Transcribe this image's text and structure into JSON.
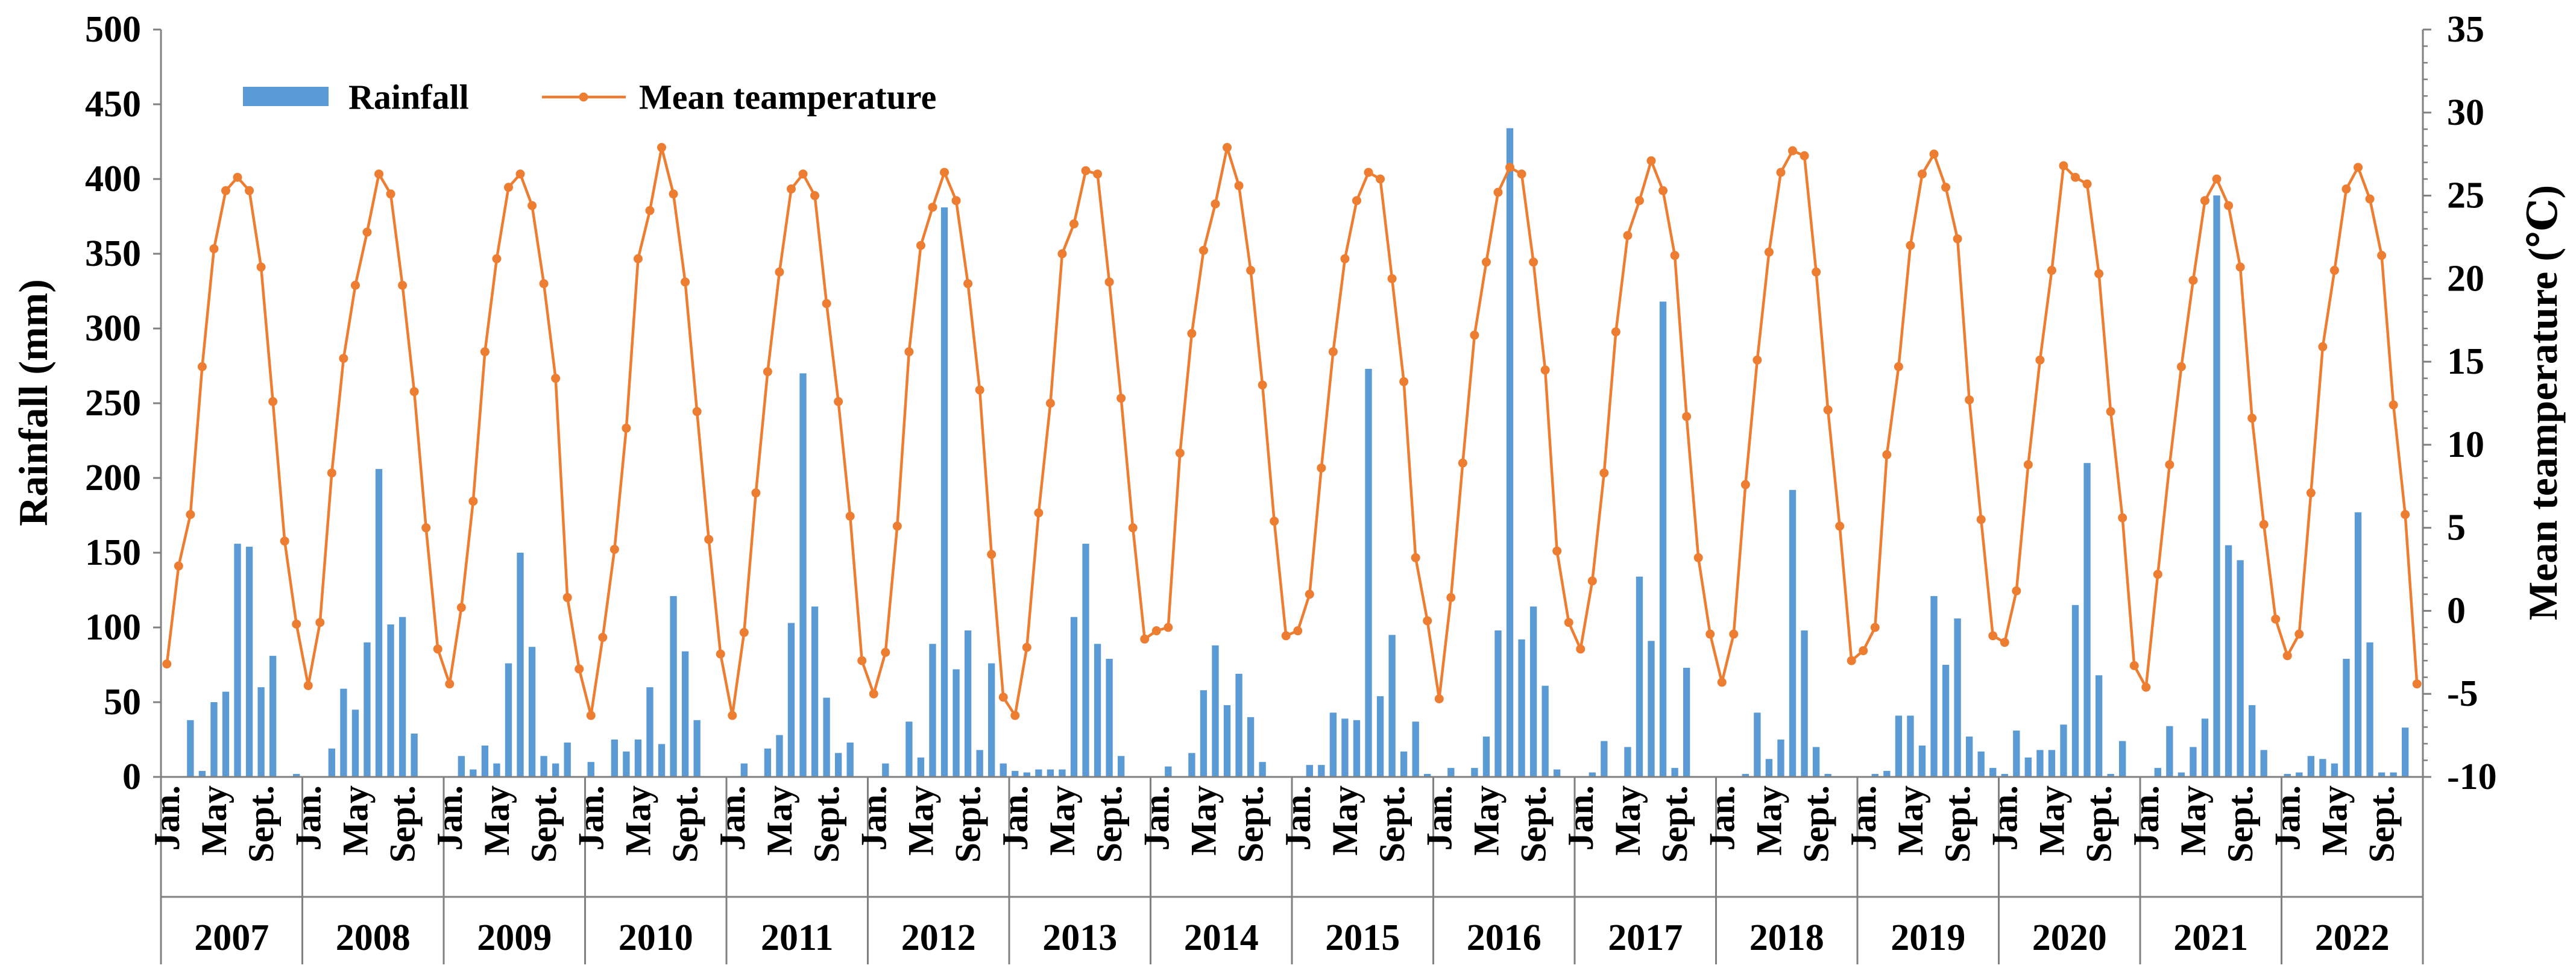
{
  "colors": {
    "rainfall": "#5B9BD5",
    "temperature": "#ED7D31",
    "axis": "#808080"
  },
  "chart_data": {
    "type": "bar",
    "categories": {
      "years": [
        "2007",
        "2008",
        "2009",
        "2010",
        "2011",
        "2012",
        "2013",
        "2014",
        "2015",
        "2016",
        "2017",
        "2018",
        "2019",
        "2020",
        "2021",
        "2022"
      ],
      "months_per_year": 12,
      "month_tick_labels": [
        "Jan.",
        "May",
        "Sept."
      ],
      "month_tick_numbers": [
        1,
        5,
        9
      ]
    },
    "series": [
      {
        "name": "Rainfall",
        "type": "bar",
        "values": [
          [
            0,
            0,
            38,
            4,
            50,
            57,
            156,
            154,
            60,
            81,
            0,
            2
          ],
          [
            0,
            0,
            19,
            59,
            45,
            90,
            206,
            102,
            107,
            29,
            0,
            0
          ],
          [
            0,
            14,
            5,
            21,
            9,
            76,
            150,
            87,
            14,
            9,
            23,
            0
          ],
          [
            10,
            0,
            25,
            17,
            25,
            60,
            22,
            121,
            84,
            38,
            0,
            0
          ],
          [
            0,
            9,
            0,
            19,
            28,
            103,
            270,
            114,
            53,
            16,
            23,
            0
          ],
          [
            0,
            9,
            0,
            37,
            13,
            89,
            381,
            72,
            98,
            18,
            76,
            9
          ],
          [
            4,
            3,
            5,
            5,
            5,
            107,
            156,
            89,
            79,
            14,
            0,
            0
          ],
          [
            0,
            7,
            0,
            16,
            58,
            88,
            48,
            69,
            40,
            10,
            0,
            0
          ],
          [
            0,
            8,
            8,
            43,
            39,
            38,
            273,
            54,
            95,
            17,
            37,
            2
          ],
          [
            0,
            6,
            0,
            6,
            27,
            98,
            434,
            92,
            114,
            61,
            5,
            0
          ],
          [
            0,
            3,
            24,
            0,
            20,
            134,
            91,
            318,
            6,
            73,
            0,
            0
          ],
          [
            0,
            0,
            2,
            43,
            12,
            25,
            192,
            98,
            20,
            2,
            0,
            0
          ],
          [
            0,
            2,
            4,
            41,
            41,
            21,
            121,
            75,
            106,
            27,
            17,
            6
          ],
          [
            2,
            31,
            13,
            18,
            18,
            35,
            115,
            210,
            68,
            2,
            24,
            0
          ],
          [
            0,
            6,
            34,
            3,
            20,
            39,
            389,
            155,
            145,
            48,
            18,
            0
          ],
          [
            2,
            3,
            14,
            12,
            9,
            79,
            177,
            90,
            3,
            3,
            33,
            0
          ]
        ]
      },
      {
        "name": "Mean teamperature",
        "type": "line",
        "values": [
          [
            -3.2,
            2.7,
            5.8,
            14.7,
            21.8,
            25.3,
            26.1,
            25.3,
            20.7,
            12.6,
            4.2,
            -0.8
          ],
          [
            -4.5,
            -0.7,
            8.3,
            15.2,
            19.6,
            22.8,
            26.3,
            25.1,
            19.6,
            13.2,
            5.0,
            -2.3
          ],
          [
            -4.4,
            0.2,
            6.6,
            15.6,
            21.2,
            25.5,
            26.3,
            24.4,
            19.7,
            14.0,
            0.8,
            -3.5
          ],
          [
            -6.3,
            -1.6,
            3.7,
            11.0,
            21.2,
            24.1,
            27.9,
            25.1,
            19.8,
            12.0,
            4.3,
            -2.6
          ],
          [
            -6.3,
            -1.3,
            7.1,
            14.4,
            20.4,
            25.4,
            26.3,
            25.0,
            18.5,
            12.6,
            5.7,
            -3.0
          ],
          [
            -5.0,
            -2.5,
            5.1,
            15.6,
            22.0,
            24.3,
            26.4,
            24.7,
            19.7,
            13.3,
            3.4,
            -5.2
          ],
          [
            -6.3,
            -2.2,
            5.9,
            12.5,
            21.5,
            23.3,
            26.5,
            26.3,
            19.8,
            12.8,
            5.0,
            -1.7
          ],
          [
            -1.2,
            -1.0,
            9.5,
            16.7,
            21.7,
            24.5,
            27.9,
            25.6,
            20.5,
            13.6,
            5.4,
            -1.5
          ],
          [
            -1.2,
            1.0,
            8.6,
            15.6,
            21.2,
            24.7,
            26.4,
            26.0,
            20.0,
            13.8,
            3.2,
            -0.6
          ],
          [
            -5.3,
            0.8,
            8.9,
            16.6,
            21.0,
            25.2,
            26.7,
            26.3,
            21.0,
            14.5,
            3.6,
            -0.7
          ],
          [
            -2.3,
            1.8,
            8.3,
            16.8,
            22.6,
            24.7,
            27.1,
            25.3,
            21.4,
            11.7,
            3.2,
            -1.4
          ],
          [
            -4.3,
            -1.4,
            7.6,
            15.1,
            21.6,
            26.4,
            27.7,
            27.4,
            20.4,
            12.1,
            5.1,
            -3.0
          ],
          [
            -2.4,
            -1.0,
            9.4,
            14.7,
            22.0,
            26.3,
            27.5,
            25.5,
            22.4,
            12.7,
            5.5,
            -1.5
          ],
          [
            -1.9,
            1.2,
            8.8,
            15.1,
            20.5,
            26.8,
            26.1,
            25.7,
            20.3,
            12.0,
            5.6,
            -3.3
          ],
          [
            -4.6,
            2.2,
            8.8,
            14.7,
            19.9,
            24.7,
            26.0,
            24.4,
            20.7,
            11.6,
            5.2,
            -0.5
          ],
          [
            -2.7,
            -1.4,
            7.1,
            15.9,
            20.5,
            25.4,
            26.7,
            24.8,
            21.4,
            12.4,
            5.8,
            -4.4
          ]
        ]
      }
    ],
    "y_left": {
      "label": "Rainfall (mm)",
      "lim": [
        0,
        500
      ],
      "ticks": [
        0,
        50,
        100,
        150,
        200,
        250,
        300,
        350,
        400,
        450,
        500
      ],
      "tick_labels": [
        "0",
        "50",
        "100",
        "150",
        "200",
        "250",
        "300",
        "350",
        "400",
        "450",
        "500"
      ]
    },
    "y_right": {
      "label": "Mean teamperature (℃)",
      "lim": [
        -10,
        35
      ],
      "ticks": [
        -10,
        -5,
        0,
        5,
        10,
        15,
        20,
        25,
        30,
        35
      ],
      "tick_labels": [
        "-10",
        "-5",
        "0",
        "5",
        "10",
        "15",
        "20",
        "25",
        "30",
        "35"
      ],
      "minor_step": 1
    },
    "legend_position": "top-left",
    "grid": false
  }
}
